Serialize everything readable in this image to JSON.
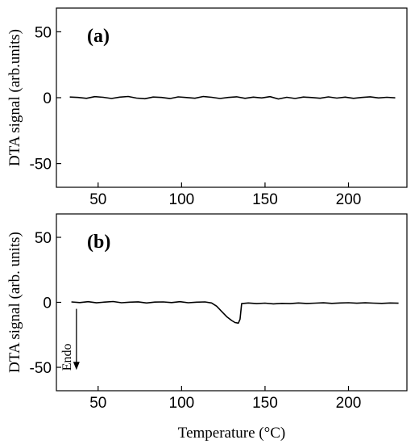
{
  "chart_data": [
    {
      "type": "line",
      "panel_label": "(a)",
      "ylabel": "DTA signal (arb.units)",
      "xlabel": "",
      "xlim": [
        25,
        235
      ],
      "ylim": [
        -68,
        68
      ],
      "xticks": [
        50,
        100,
        150,
        200
      ],
      "yticks": [
        -50,
        0,
        50
      ],
      "series": [
        {
          "x": [
            33,
            38,
            43,
            48,
            53,
            58,
            63,
            68,
            73,
            78,
            83,
            88,
            93,
            98,
            103,
            108,
            113,
            118,
            123,
            128,
            133,
            138,
            143,
            148,
            153,
            158,
            163,
            168,
            173,
            178,
            183,
            188,
            193,
            198,
            203,
            208,
            213,
            218,
            223,
            228
          ],
          "y": [
            0.5,
            0.2,
            -0.5,
            0.8,
            0.3,
            -0.6,
            0.4,
            0.9,
            -0.3,
            -0.8,
            0.5,
            0.2,
            -0.7,
            0.6,
            0.1,
            -0.4,
            0.9,
            0.3,
            -0.6,
            0.2,
            0.7,
            -0.5,
            0.4,
            -0.2,
            0.8,
            -1.0,
            0.3,
            -0.6,
            0.5,
            0.1,
            -0.4,
            0.6,
            -0.3,
            0.4,
            -0.5,
            0.2,
            0.7,
            -0.2,
            0.3,
            -0.1
          ]
        }
      ]
    },
    {
      "type": "line",
      "panel_label": "(b)",
      "ylabel": "DTA signal (arb. units)",
      "xlabel": "Temperature (°C)",
      "xlim": [
        25,
        235
      ],
      "ylim": [
        -68,
        68
      ],
      "xticks": [
        50,
        100,
        150,
        200
      ],
      "yticks": [
        -50,
        0,
        50
      ],
      "annotation": {
        "text": "Endo",
        "x": 37,
        "y_start": -5,
        "y_end": -52
      },
      "series": [
        {
          "x": [
            34,
            39,
            44,
            49,
            54,
            59,
            64,
            69,
            74,
            79,
            84,
            89,
            94,
            99,
            104,
            109,
            114,
            118,
            121,
            124,
            127,
            130,
            132,
            134,
            135,
            136,
            140,
            145,
            150,
            155,
            160,
            165,
            170,
            175,
            180,
            185,
            190,
            195,
            200,
            205,
            210,
            215,
            220,
            225,
            230
          ],
          "y": [
            0.3,
            -0.2,
            0.5,
            -0.4,
            0.2,
            0.6,
            -0.3,
            0.1,
            0.4,
            -0.5,
            0.2,
            0.3,
            -0.2,
            0.5,
            -0.3,
            0.1,
            0.3,
            -0.5,
            -3,
            -7,
            -11,
            -14,
            -15.5,
            -16,
            -13,
            -1,
            -0.5,
            -1,
            -0.6,
            -1.2,
            -0.8,
            -1,
            -0.5,
            -0.9,
            -0.6,
            -0.4,
            -0.8,
            -0.5,
            -0.3,
            -0.7,
            -0.4,
            -0.6,
            -0.8,
            -0.5,
            -0.7
          ]
        }
      ]
    }
  ]
}
